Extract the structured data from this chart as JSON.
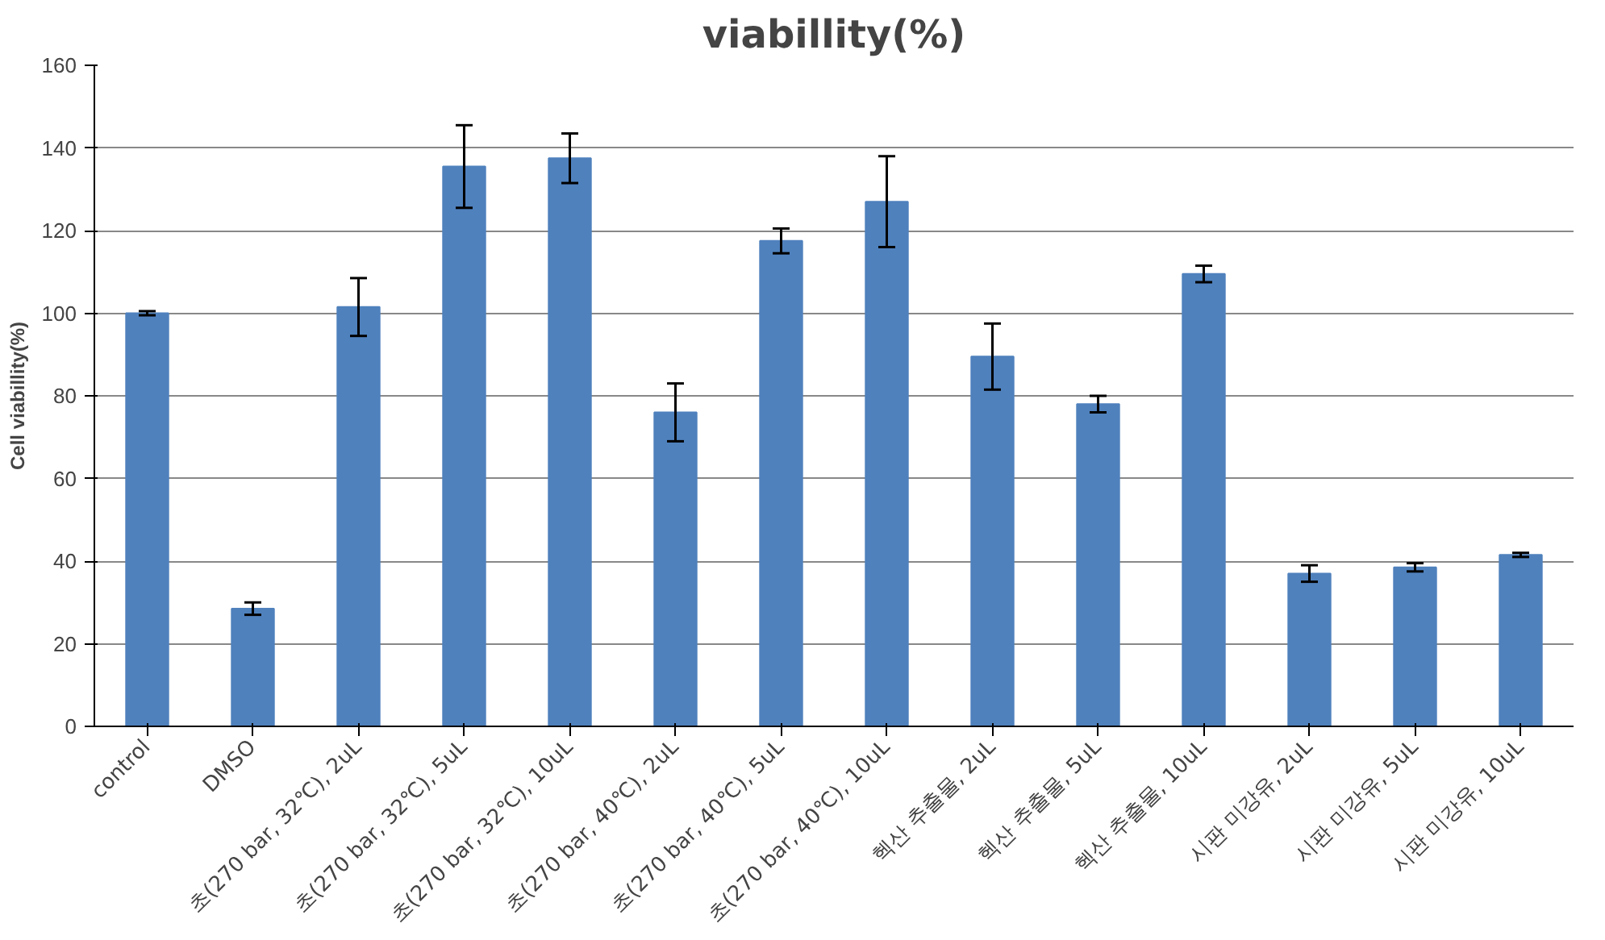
{
  "chart_data": {
    "type": "bar",
    "title": "viabillity(%)",
    "ylabel": "Cell viabillity(%)",
    "categories": [
      "control",
      "DMSO",
      "초(270 bar, 32℃), 2uL",
      "초(270 bar, 32℃), 5uL",
      "초(270 bar, 32℃), 10uL",
      "초(270 bar, 40℃), 2uL",
      "초(270 bar, 40℃), 5uL",
      "초(270 bar, 40℃), 10uL",
      "헥산 추출물, 2uL",
      "헥산 추출물, 5uL",
      "헥산 추출물, 10uL",
      "시판 미강유, 2uL",
      "시판 미강유, 5uL",
      "시판 미강유, 10uL"
    ],
    "values": [
      100,
      28.5,
      101.5,
      135.5,
      137.5,
      76,
      117.5,
      127,
      89.5,
      78,
      109.5,
      37,
      38.5,
      41.5
    ],
    "errors": [
      0.5,
      1.5,
      7,
      10,
      6,
      7,
      3,
      11,
      8,
      2,
      2,
      2,
      1,
      0.5
    ],
    "color": "#4f81bd",
    "ylim": [
      0,
      160
    ],
    "yticks": [
      0,
      20,
      40,
      60,
      80,
      100,
      120,
      140,
      160
    ],
    "grid": "y"
  }
}
